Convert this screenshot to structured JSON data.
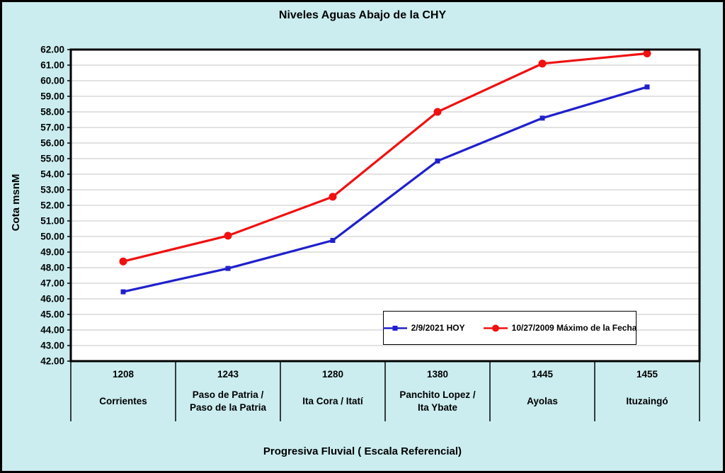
{
  "chart_data": {
    "type": "line",
    "title": "Niveles Aguas Abajo de la CHY",
    "ylabel": "Cota msnM",
    "xlabel": "Progresiva Fluvial ( Escala Referencial)",
    "ylim": [
      42,
      62
    ],
    "y_tick_step": 1,
    "y_tick_format_decimals": 2,
    "grid": true,
    "legend_position": "inside-bottom-right",
    "categories": [
      {
        "km": "1208",
        "name_lines": [
          "Corrientes"
        ]
      },
      {
        "km": "1243",
        "name_lines": [
          "Paso de Patria /",
          "Paso de la Patria"
        ]
      },
      {
        "km": "1280",
        "name_lines": [
          "Ita Cora / Itatí"
        ]
      },
      {
        "km": "1380",
        "name_lines": [
          "Panchito Lopez /",
          "Ita Ybate"
        ]
      },
      {
        "km": "1445",
        "name_lines": [
          "Ayolas"
        ]
      },
      {
        "km": "1455",
        "name_lines": [
          "Ituzaingó"
        ]
      }
    ],
    "series": [
      {
        "name": "2/9/2021 HOY",
        "color": "#2020CC",
        "marker": "square",
        "values": [
          46.45,
          47.95,
          49.75,
          54.85,
          57.6,
          59.6
        ]
      },
      {
        "name": "10/27/2009 Máximo de la Fecha",
        "color": "#F01010",
        "marker": "circle",
        "values": [
          48.4,
          50.05,
          52.55,
          58.0,
          61.1,
          61.75
        ]
      }
    ]
  },
  "colors": {
    "background": "#CBEDF0",
    "plot_background": "#FFFFFF",
    "gridline": "#C6C6C6",
    "axis": "#000000",
    "legend_border": "#000000"
  }
}
